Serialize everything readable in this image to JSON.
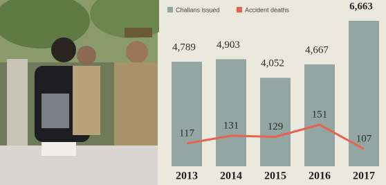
{
  "chart_data": {
    "type": "bar-line",
    "categories": [
      "2013",
      "2014",
      "2015",
      "2016",
      "2017"
    ],
    "series": [
      {
        "name": "Challans issued",
        "color": "#93a6a2",
        "values": [
          4789,
          4903,
          4052,
          4667,
          6663
        ],
        "value_labels": [
          "4,789",
          "4,903",
          "4,052",
          "4,667",
          "6,663"
        ]
      },
      {
        "name": "Accident deaths",
        "color": "#e8634f",
        "values": [
          117,
          131,
          129,
          151,
          107
        ]
      }
    ]
  }
}
